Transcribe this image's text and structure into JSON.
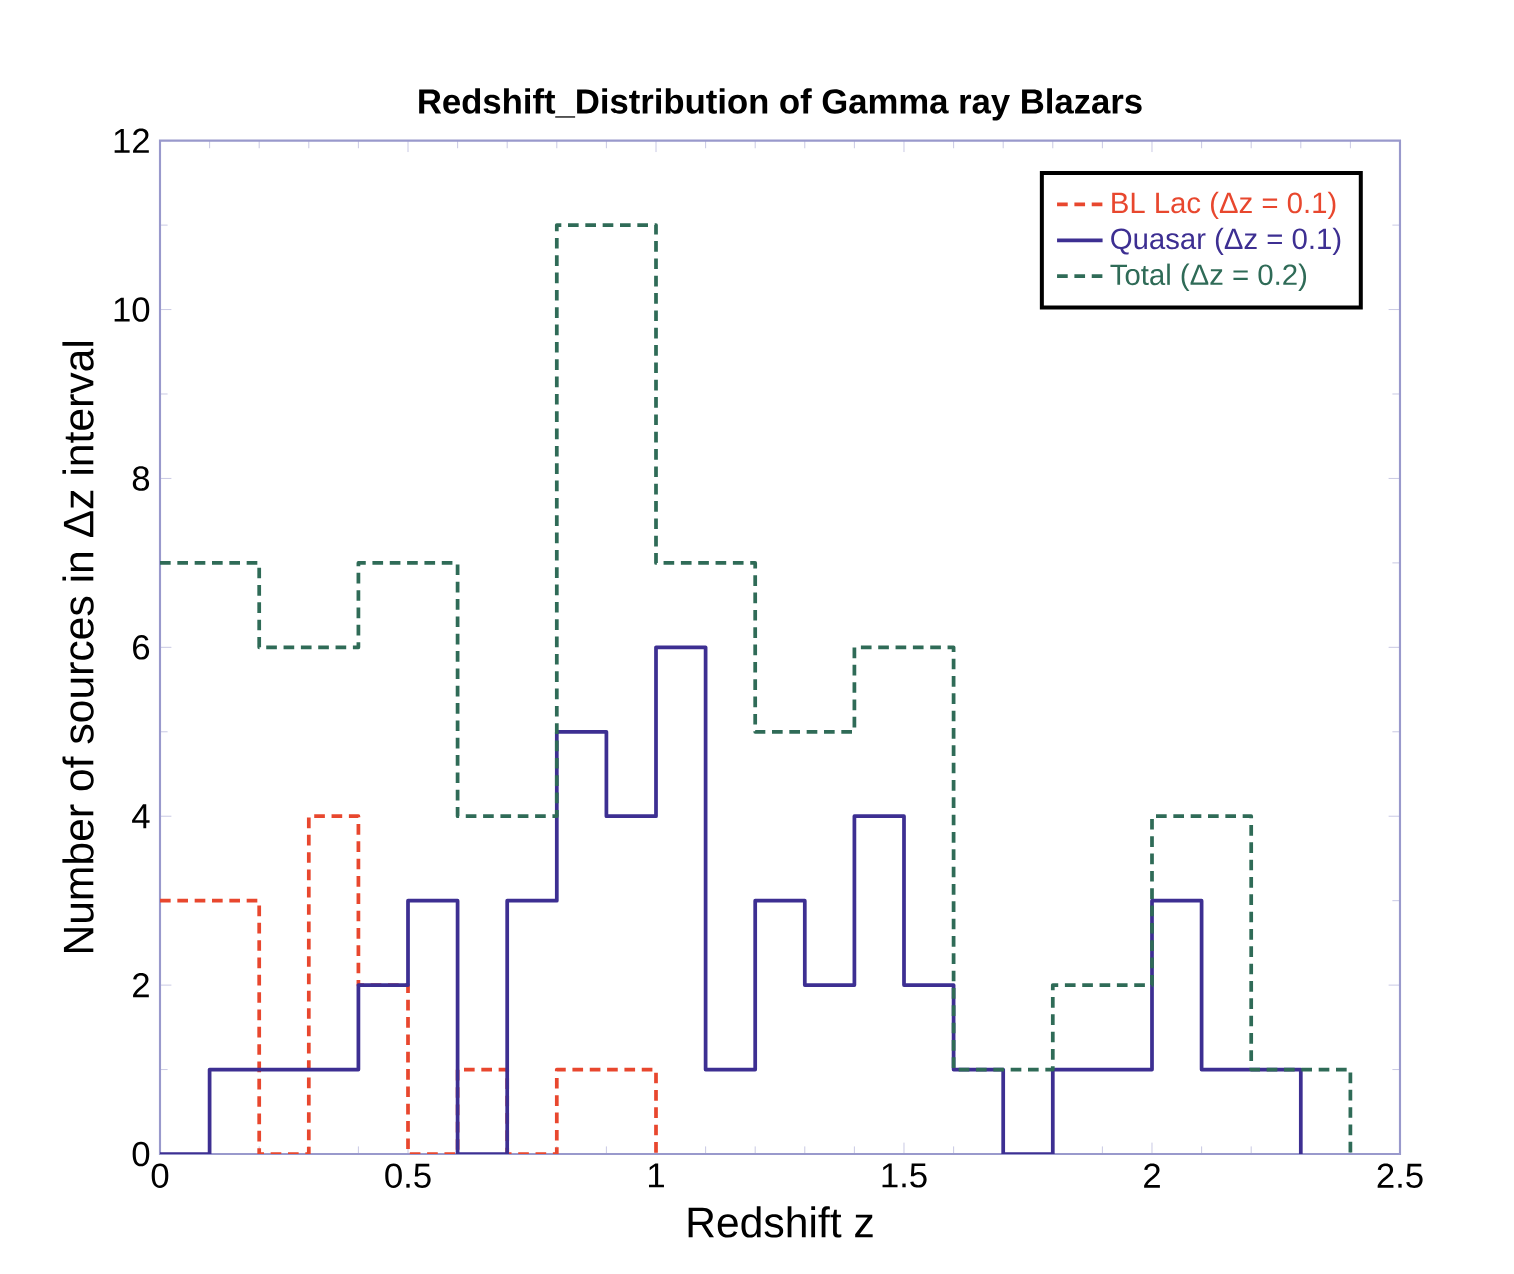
{
  "chart_data": {
    "type": "step",
    "title": "Redshift_Distribution of Gamma ray Blazars",
    "xlabel": "Redshift z",
    "ylabel": "Number of sources in Δz interval",
    "xlim": [
      0,
      2.5
    ],
    "xticks": [
      0,
      0.5,
      1,
      1.5,
      2,
      2.5
    ],
    "ylim": [
      0,
      12
    ],
    "yticks": [
      0,
      2,
      4,
      6,
      8,
      10,
      12
    ],
    "legend": "top right",
    "series": [
      {
        "name": "BL Lac  (Δz = 0.1)",
        "color": "#e8472e",
        "line_style": "dashed",
        "x": [
          0,
          0.1,
          0.2,
          0.3,
          0.4,
          0.5,
          0.6,
          0.7,
          0.8,
          0.9,
          1.0
        ],
        "values": [
          3,
          3,
          0,
          4,
          2,
          0,
          1,
          0,
          1,
          1,
          0
        ]
      },
      {
        "name": "Quasar  (Δz = 0.1)",
        "color": "#3d2f92",
        "line_style": "solid",
        "x": [
          0,
          0.1,
          0.2,
          0.3,
          0.4,
          0.5,
          0.6,
          0.7,
          0.8,
          0.9,
          1.0,
          1.1,
          1.2,
          1.3,
          1.4,
          1.5,
          1.6,
          1.7,
          1.8,
          1.9,
          2.0,
          2.1,
          2.2,
          2.3
        ],
        "values": [
          0,
          1,
          1,
          1,
          2,
          3,
          0,
          3,
          5,
          4,
          6,
          1,
          3,
          2,
          4,
          2,
          1,
          0,
          1,
          1,
          3,
          1,
          1,
          0
        ]
      },
      {
        "name": "Total       (Δz = 0.2)",
        "color": "#2f6b57",
        "line_style": "dashed",
        "x": [
          0,
          0.2,
          0.4,
          0.6,
          0.8,
          1.0,
          1.2,
          1.4,
          1.6,
          1.8,
          2.0,
          2.2,
          2.4
        ],
        "values": [
          7,
          6,
          7,
          4,
          11,
          7,
          5,
          6,
          1,
          2,
          4,
          1,
          0
        ]
      }
    ]
  }
}
